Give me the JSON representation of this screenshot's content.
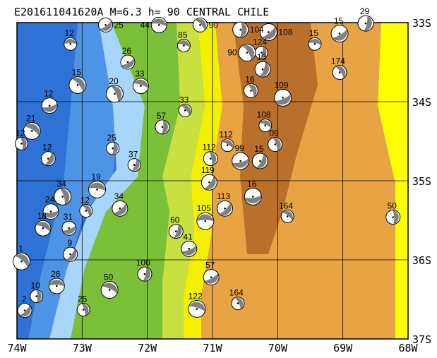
{
  "title": "E201611041620A M=6.3 h= 90 CENTRAL CHILE",
  "map": {
    "lon_range": [
      -74,
      -68
    ],
    "lat_range": [
      -33,
      -37
    ],
    "lon_ticks": [
      {
        "v": -74,
        "label": "74W"
      },
      {
        "v": -73,
        "label": "73W"
      },
      {
        "v": -72,
        "label": "72W"
      },
      {
        "v": -71,
        "label": "71W"
      },
      {
        "v": -70,
        "label": "70W"
      },
      {
        "v": -69,
        "label": "69W"
      },
      {
        "v": -68,
        "label": "68W"
      }
    ],
    "lat_ticks": [
      {
        "v": -33,
        "label": "33S"
      },
      {
        "v": -34,
        "label": "34S"
      },
      {
        "v": -35,
        "label": "35S"
      },
      {
        "v": -36,
        "label": "36S"
      },
      {
        "v": -37,
        "label": "37S"
      }
    ],
    "colors": {
      "ocean_deep": "#2f72d6",
      "ocean_mid": "#4e94e6",
      "shelf": "#a8d6fa",
      "lowland": "#7cc03a",
      "hills": "#c8e040",
      "foothills": "#f4f000",
      "highland": "#e8a444",
      "peaks": "#b8702a",
      "east_plain": "#ffff00",
      "ball_fill": "#808080"
    }
  },
  "events": [
    {
      "lon": -73.18,
      "lat": -33.27,
      "label": "12"
    },
    {
      "lon": -71.19,
      "lat": -33.03,
      "label": "90"
    },
    {
      "lon": -70.57,
      "lat": -33.09,
      "label": "104"
    },
    {
      "lon": -70.14,
      "lat": -33.12,
      "label": "108"
    },
    {
      "lon": -69.43,
      "lat": -33.27,
      "label": "15"
    },
    {
      "lon": -69.05,
      "lat": -33.63,
      "label": "174"
    },
    {
      "lon": -68.65,
      "lat": -33.01,
      "label": "29"
    },
    {
      "lon": -69.05,
      "lat": -33.14,
      "label": "15"
    },
    {
      "lon": -71.44,
      "lat": -33.29,
      "label": "85"
    },
    {
      "lon": -70.41,
      "lat": -33.86,
      "label": "16"
    },
    {
      "lon": -70.23,
      "lat": -33.59,
      "label": "13"
    },
    {
      "lon": -69.92,
      "lat": -33.95,
      "label": "109"
    },
    {
      "lon": -70.19,
      "lat": -34.3,
      "label": "108"
    },
    {
      "lon": -70.04,
      "lat": -34.54,
      "label": "09"
    },
    {
      "lon": -70.27,
      "lat": -34.75,
      "label": "15"
    },
    {
      "lon": -70.57,
      "lat": -34.75,
      "label": "99"
    },
    {
      "lon": -70.77,
      "lat": -34.55,
      "label": "112"
    },
    {
      "lon": -71.03,
      "lat": -34.72,
      "label": "112"
    },
    {
      "lon": -71.05,
      "lat": -35.02,
      "label": "119"
    },
    {
      "lon": -70.38,
      "lat": -35.2,
      "label": "16"
    },
    {
      "lon": -69.85,
      "lat": -35.45,
      "label": "164"
    },
    {
      "lon": -68.23,
      "lat": -35.46,
      "label": "50"
    },
    {
      "lon": -70.81,
      "lat": -35.35,
      "label": "113"
    },
    {
      "lon": -71.11,
      "lat": -35.51,
      "label": "105"
    },
    {
      "lon": -71.42,
      "lat": -34.11,
      "label": "33"
    },
    {
      "lon": -71.77,
      "lat": -34.32,
      "label": "57"
    },
    {
      "lon": -72.42,
      "lat": -35.35,
      "label": "34"
    },
    {
      "lon": -72.77,
      "lat": -35.11,
      "label": "19"
    },
    {
      "lon": -72.94,
      "lat": -35.38,
      "label": "12"
    },
    {
      "lon": -72.04,
      "lat": -36.18,
      "label": "100"
    },
    {
      "lon": -71.02,
      "lat": -36.22,
      "label": "57"
    },
    {
      "lon": -71.24,
      "lat": -36.62,
      "label": "122"
    },
    {
      "lon": -70.61,
      "lat": -36.55,
      "label": "164"
    },
    {
      "lon": -71.56,
      "lat": -35.64,
      "label": "60"
    },
    {
      "lon": -71.36,
      "lat": -35.86,
      "label": "41"
    },
    {
      "lon": -72.58,
      "lat": -36.38,
      "label": "50"
    },
    {
      "lon": -72.98,
      "lat": -36.63,
      "label": "25"
    },
    {
      "lon": -73.52,
      "lat": -34.72,
      "label": "12"
    },
    {
      "lon": -73.5,
      "lat": -34.05,
      "label": "12"
    },
    {
      "lon": -73.77,
      "lat": -34.37,
      "label": "21"
    },
    {
      "lon": -73.93,
      "lat": -34.53,
      "label": "12"
    },
    {
      "lon": -73.18,
      "lat": -35.93,
      "label": "9"
    },
    {
      "lon": -73.48,
      "lat": -35.39,
      "label": "24"
    },
    {
      "lon": -73.93,
      "lat": -36.02,
      "label": "1"
    },
    {
      "lon": -73.7,
      "lat": -36.46,
      "label": "10"
    },
    {
      "lon": -73.88,
      "lat": -36.64,
      "label": "2"
    },
    {
      "lon": -73.39,
      "lat": -36.33,
      "label": "26"
    },
    {
      "lon": -73.07,
      "lat": -33.79,
      "label": "15"
    },
    {
      "lon": -72.53,
      "lat": -34.59,
      "label": "25"
    },
    {
      "lon": -72.64,
      "lat": -33.03,
      "label": "25"
    },
    {
      "lon": -71.82,
      "lat": -33.03,
      "label": "44"
    },
    {
      "lon": -70.47,
      "lat": -33.38,
      "label": "90"
    },
    {
      "lon": -70.25,
      "lat": -33.38,
      "label": "124"
    },
    {
      "lon": -72.3,
      "lat": -33.5,
      "label": "26"
    },
    {
      "lon": -72.1,
      "lat": -33.8,
      "label": "33"
    },
    {
      "lon": -72.5,
      "lat": -33.9,
      "label": "20"
    },
    {
      "lon": -72.2,
      "lat": -34.8,
      "label": "37"
    },
    {
      "lon": -73.2,
      "lat": -35.6,
      "label": "31"
    },
    {
      "lon": -73.6,
      "lat": -35.6,
      "label": "18"
    },
    {
      "lon": -73.3,
      "lat": -35.2,
      "label": "34"
    }
  ]
}
